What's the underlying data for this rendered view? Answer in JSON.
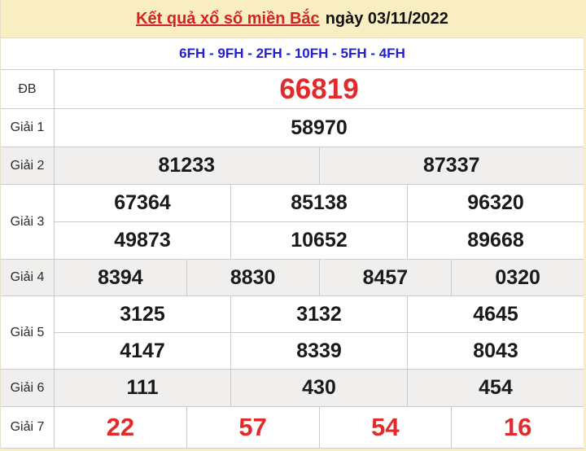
{
  "page": {
    "title_main": "Kết quả xổ số miền Bắc",
    "title_date": "ngày 03/11/2022",
    "machine_codes": "6FH - 9FH - 2FH - 10FH - 5FH - 4FH"
  },
  "colors": {
    "header_bg": "#f8eec1",
    "title_red": "#d02525",
    "number_red": "#e12b2b",
    "codes_blue": "#2222cc",
    "alt_row_bg": "#f0efee",
    "border": "#cccccc",
    "number_black": "#1a1a1a"
  },
  "table": {
    "rows": [
      {
        "label": "ĐB",
        "lines": [
          [
            "66819"
          ]
        ]
      },
      {
        "label": "Giải 1",
        "lines": [
          [
            "58970"
          ]
        ]
      },
      {
        "label": "Giải 2",
        "lines": [
          [
            "81233",
            "87337"
          ]
        ]
      },
      {
        "label": "Giải 3",
        "lines": [
          [
            "67364",
            "85138",
            "96320"
          ],
          [
            "49873",
            "10652",
            "89668"
          ]
        ]
      },
      {
        "label": "Giải 4",
        "lines": [
          [
            "8394",
            "8830",
            "8457",
            "0320"
          ]
        ]
      },
      {
        "label": "Giải 5",
        "lines": [
          [
            "3125",
            "3132",
            "4645"
          ],
          [
            "4147",
            "8339",
            "8043"
          ]
        ]
      },
      {
        "label": "Giải 6",
        "lines": [
          [
            "111",
            "430",
            "454"
          ]
        ]
      },
      {
        "label": "Giải 7",
        "lines": [
          [
            "22",
            "57",
            "54",
            "16"
          ]
        ]
      }
    ]
  }
}
